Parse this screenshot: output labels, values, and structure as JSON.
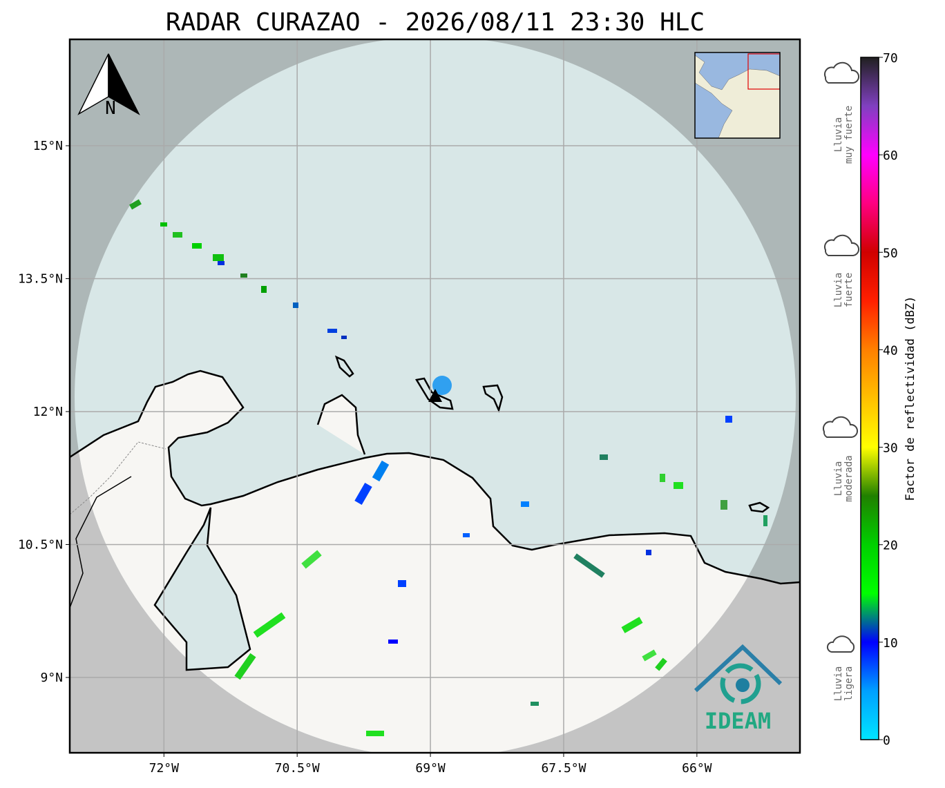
{
  "map": {
    "title": "RADAR CURAZAO - 2026/08/11 23:30 HLC",
    "north_label": "N",
    "lonlim": [
      -73.06,
      -64.84
    ],
    "latlim": [
      8.15,
      16.2
    ],
    "lon_ticks": [
      {
        "value": -72,
        "label": "72°W"
      },
      {
        "value": -70.5,
        "label": "70.5°W"
      },
      {
        "value": -69,
        "label": "69°W"
      },
      {
        "value": -67.5,
        "label": "67.5°W"
      },
      {
        "value": -66,
        "label": "66°W"
      }
    ],
    "lat_ticks": [
      {
        "value": 15,
        "label": "15°N"
      },
      {
        "value": 13.5,
        "label": "13.5°N"
      },
      {
        "value": 12,
        "label": "12°N"
      },
      {
        "value": 10.5,
        "label": "10.5°N"
      },
      {
        "value": 9,
        "label": "9°N"
      }
    ],
    "grid": true,
    "logo": "IDEAM",
    "colorbar": {
      "label": "Factor de reflectividad (dBZ)",
      "lim": [
        0,
        70
      ],
      "ticks": [
        0,
        10,
        20,
        30,
        40,
        50,
        60,
        70
      ],
      "colormap": [
        "#00e5ff",
        "#00a0ff",
        "#0000ff",
        "#00ff00",
        "#00d000",
        "#208000",
        "#ffff00",
        "#ffc000",
        "#ff8000",
        "#ff2000",
        "#d00000",
        "#ff0080",
        "#ff00ff",
        "#8040c0",
        "#202020"
      ]
    },
    "categories": [
      {
        "line1": "Lluvia",
        "line2": "muy fuerte"
      },
      {
        "line1": "Lluvia",
        "line2": "fuerte"
      },
      {
        "line1": "Lluvia",
        "line2": "moderada"
      },
      {
        "line1": "Lluvia",
        "line2": "ligera"
      }
    ]
  }
}
